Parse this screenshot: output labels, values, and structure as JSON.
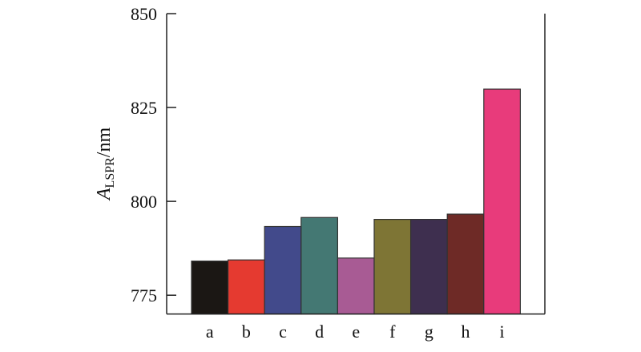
{
  "chart_data": {
    "type": "bar",
    "categories": [
      "a",
      "b",
      "c",
      "d",
      "e",
      "f",
      "g",
      "h",
      "i"
    ],
    "values": [
      784.1,
      784.4,
      793.3,
      795.7,
      784.9,
      795.2,
      795.2,
      796.6,
      829.9
    ],
    "colors": [
      "#1b1714",
      "#e53a30",
      "#424a8b",
      "#447873",
      "#a85b94",
      "#7e7535",
      "#3e2f4f",
      "#6e2a26",
      "#e83b7b"
    ],
    "title": "",
    "xlabel": "",
    "ylabel": {
      "main": "A",
      "subscript": "LSPR",
      "unit": "/nm"
    },
    "ylim": [
      770,
      850
    ],
    "yticks": [
      775,
      800,
      825,
      850
    ],
    "grid": false
  }
}
